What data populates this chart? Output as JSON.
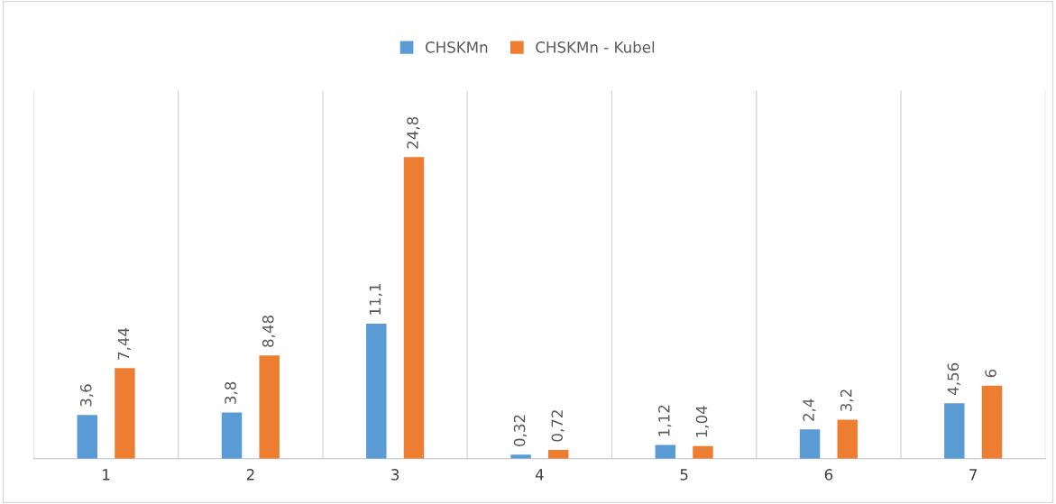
{
  "chart_data": {
    "type": "bar",
    "categories": [
      "1",
      "2",
      "3",
      "4",
      "5",
      "6",
      "7"
    ],
    "series": [
      {
        "name": "CHSKMn",
        "color": "#5b9bd5",
        "values": [
          3.6,
          3.8,
          11.1,
          0.32,
          1.12,
          2.4,
          4.56
        ],
        "value_labels": [
          "3,6",
          "3,8",
          "11,1",
          "0,32",
          "1,12",
          "2,4",
          "4,56"
        ]
      },
      {
        "name": "CHSKMn - Kubel",
        "color": "#ed7d31",
        "values": [
          7.44,
          8.48,
          24.8,
          0.72,
          1.04,
          3.2,
          6
        ],
        "value_labels": [
          "7,44",
          "8,48",
          "24,8",
          "0,72",
          "1,04",
          "3,2",
          "6"
        ]
      }
    ],
    "legend": "top",
    "grid": "x",
    "tick_labels": "x"
  }
}
